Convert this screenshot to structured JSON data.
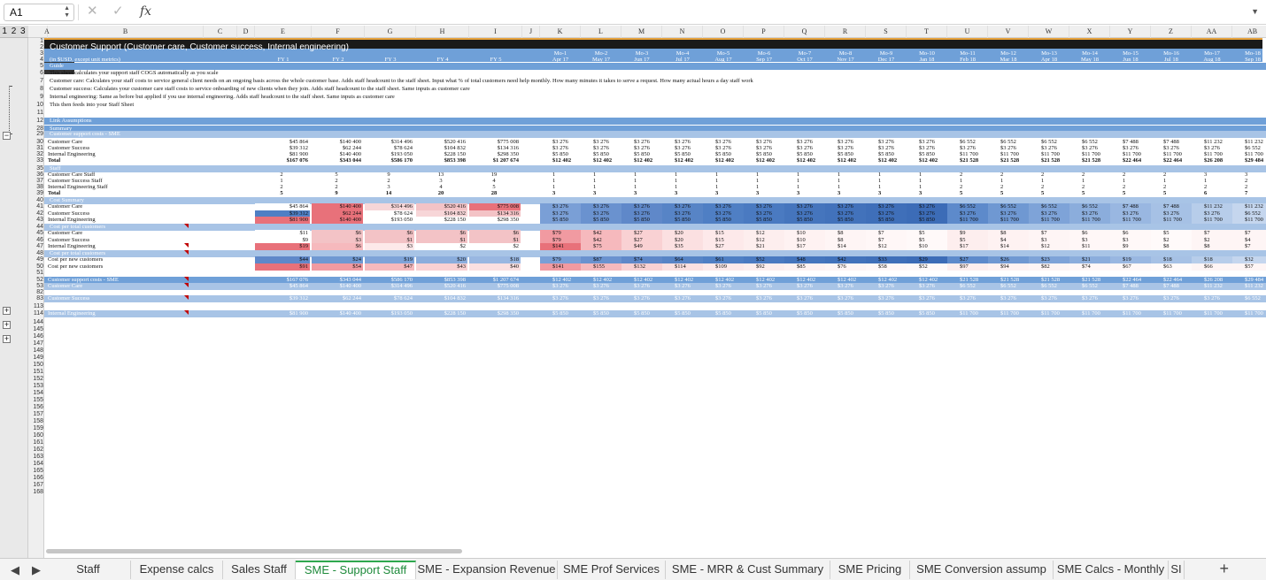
{
  "formula_bar": {
    "cell_ref": "A1",
    "cancel_icon": "✕",
    "confirm_icon": "✓",
    "fx": "fx"
  },
  "outline_levels": "1 2 3",
  "columns": [
    "A",
    "B",
    "C",
    "D",
    "E",
    "F",
    "G",
    "H",
    "I",
    "J",
    "K",
    "L",
    "M",
    "N",
    "O",
    "P",
    "Q",
    "R",
    "S",
    "T",
    "U",
    "V",
    "W",
    "X",
    "Y",
    "Z",
    "AA",
    "AB"
  ],
  "title": "Customer Support (Customer care, Customer success, Internal engineering)",
  "units_label": "(in $USD, except unit metrics)",
  "fy_headers": [
    "FY 1",
    "FY 2",
    "FY 3",
    "FY 4",
    "FY 5"
  ],
  "month_labels": [
    "Mo-1",
    "Mo-2",
    "Mo-3",
    "Mo-4",
    "Mo-5",
    "Mo-6",
    "Mo-7",
    "Mo-8",
    "Mo-9",
    "Mo-10",
    "Mo-11",
    "Mo-12",
    "Mo-13",
    "Mo-14",
    "Mo-15",
    "Mo-16",
    "Mo-17",
    "Mo-18"
  ],
  "month_dates": [
    "Apr 17",
    "May 17",
    "Jun 17",
    "Jul 17",
    "Aug 17",
    "Sep 17",
    "Oct 17",
    "Nov 17",
    "Dec 17",
    "Jan 18",
    "Feb 18",
    "Mar 18",
    "Apr 18",
    "May 18",
    "Jun 18",
    "Jul 18",
    "Aug 18",
    "Sep 18"
  ],
  "guide_label": "Guide",
  "notes": [
    "This sheet calculates your support staff COGS automatically as you scale",
    "Customer care: Calculates your staff costs to service general client needs on an ongoing basis across the whole customer base. Adds staff headcount to the staff sheet. Input what % of total customers need help monthly. How many minutes it takes to serve a request. How many actual hours a day staff work",
    "Customer success: Calculates your customer care staff costs to service onboarding of new clients when they join. Adds staff headcount to the staff sheet. Same inputs as customer care",
    "Internal engineering: Same as before but applied if you use internal engineering. Adds staff headcount to the staff sheet. Same inputs as customer care",
    "This then feeds into your Staff Sheet"
  ],
  "sections": {
    "link": "Link Assumptions",
    "summary": "Summary",
    "costs_sme": "Customer support costs - SME",
    "staff": "Staff",
    "cost_summary": "Cost Summary",
    "cpt1": "Cost per total customers",
    "cpt2": "Cost per total customers",
    "sme2": "Customer support costs - SME",
    "cc": "Customer Care",
    "cs": "Customer Success",
    "ie": "Internal Engineering"
  },
  "blocks": {
    "costs": [
      {
        "label": "Customer Care",
        "fy": [
          "$45 864",
          "$140 400",
          "$314 496",
          "$520 416",
          "$775 008"
        ],
        "mo": [
          "$3 276",
          "$3 276",
          "$3 276",
          "$3 276",
          "$3 276",
          "$3 276",
          "$3 276",
          "$3 276",
          "$3 276",
          "$3 276",
          "$6 552",
          "$6 552",
          "$6 552",
          "$6 552",
          "$7 488",
          "$7 488",
          "$11 232",
          "$11 232"
        ]
      },
      {
        "label": "Customer Success",
        "fy": [
          "$39 312",
          "$62 244",
          "$78 624",
          "$104 832",
          "$134 316"
        ],
        "mo": [
          "$3 276",
          "$3 276",
          "$3 276",
          "$3 276",
          "$3 276",
          "$3 276",
          "$3 276",
          "$3 276",
          "$3 276",
          "$3 276",
          "$3 276",
          "$3 276",
          "$3 276",
          "$3 276",
          "$3 276",
          "$3 276",
          "$3 276",
          "$6 552"
        ]
      },
      {
        "label": "Internal Engineering",
        "fy": [
          "$81 900",
          "$140 400",
          "$193 050",
          "$228 150",
          "$298 350"
        ],
        "mo": [
          "$5 850",
          "$5 850",
          "$5 850",
          "$5 850",
          "$5 850",
          "$5 850",
          "$5 850",
          "$5 850",
          "$5 850",
          "$5 850",
          "$11 700",
          "$11 700",
          "$11 700",
          "$11 700",
          "$11 700",
          "$11 700",
          "$11 700",
          "$11 700"
        ]
      },
      {
        "label": "Total",
        "fy": [
          "$167 076",
          "$343 044",
          "$586 170",
          "$853 398",
          "$1 207 674"
        ],
        "mo": [
          "$12 402",
          "$12 402",
          "$12 402",
          "$12 402",
          "$12 402",
          "$12 402",
          "$12 402",
          "$12 402",
          "$12 402",
          "$12 402",
          "$21 528",
          "$21 528",
          "$21 528",
          "$21 528",
          "$22 464",
          "$22 464",
          "$26 208",
          "$29 484"
        ]
      }
    ],
    "staff": [
      {
        "label": "Customer Care Staff",
        "fy": [
          "2",
          "5",
          "9",
          "13",
          "19"
        ],
        "mo": [
          "1",
          "1",
          "1",
          "1",
          "1",
          "1",
          "1",
          "1",
          "1",
          "1",
          "2",
          "2",
          "2",
          "2",
          "2",
          "2",
          "3",
          "3"
        ]
      },
      {
        "label": "Customer Success Staff",
        "fy": [
          "1",
          "2",
          "2",
          "3",
          "4"
        ],
        "mo": [
          "1",
          "1",
          "1",
          "1",
          "1",
          "1",
          "1",
          "1",
          "1",
          "1",
          "1",
          "1",
          "1",
          "1",
          "1",
          "1",
          "1",
          "2"
        ]
      },
      {
        "label": "Internal Engineering Staff",
        "fy": [
          "2",
          "2",
          "3",
          "4",
          "5"
        ],
        "mo": [
          "1",
          "1",
          "1",
          "1",
          "1",
          "1",
          "1",
          "1",
          "1",
          "1",
          "2",
          "2",
          "2",
          "2",
          "2",
          "2",
          "2",
          "2"
        ]
      },
      {
        "label": "Total",
        "fy": [
          "5",
          "9",
          "14",
          "20",
          "28"
        ],
        "mo": [
          "3",
          "3",
          "3",
          "3",
          "3",
          "3",
          "3",
          "3",
          "3",
          "3",
          "5",
          "5",
          "5",
          "5",
          "5",
          "5",
          "6",
          "7"
        ]
      }
    ],
    "cost_summary": [
      {
        "label": "Customer Care",
        "fy": [
          "$45 864",
          "$140 400",
          "$314 496",
          "$520 416",
          "$775 008"
        ],
        "mo": [
          "$3 276",
          "$3 276",
          "$3 276",
          "$3 276",
          "$3 276",
          "$3 276",
          "$3 276",
          "$3 276",
          "$3 276",
          "$3 276",
          "$6 552",
          "$6 552",
          "$6 552",
          "$6 552",
          "$7 488",
          "$7 488",
          "$11 232",
          "$11 232"
        ]
      },
      {
        "label": "Customer Success",
        "fy": [
          "$39 312",
          "$62 244",
          "$78 624",
          "$104 832",
          "$134 316"
        ],
        "mo": [
          "$3 276",
          "$3 276",
          "$3 276",
          "$3 276",
          "$3 276",
          "$3 276",
          "$3 276",
          "$3 276",
          "$3 276",
          "$3 276",
          "$3 276",
          "$3 276",
          "$3 276",
          "$3 276",
          "$3 276",
          "$3 276",
          "$3 276",
          "$6 552"
        ]
      },
      {
        "label": "Internal Engineering",
        "fy": [
          "$81 900",
          "$140 400",
          "$193 050",
          "$228 150",
          "$298 350"
        ],
        "mo": [
          "$5 850",
          "$5 850",
          "$5 850",
          "$5 850",
          "$5 850",
          "$5 850",
          "$5 850",
          "$5 850",
          "$5 850",
          "$5 850",
          "$11 700",
          "$11 700",
          "$11 700",
          "$11 700",
          "$11 700",
          "$11 700",
          "$11 700",
          "$11 700"
        ]
      }
    ],
    "cpt": [
      {
        "label": "Customer Care",
        "fy": [
          "$11",
          "$6",
          "$6",
          "$6",
          "$6"
        ],
        "mo": [
          "$79",
          "$42",
          "$27",
          "$20",
          "$15",
          "$12",
          "$10",
          "$8",
          "$7",
          "$5",
          "$9",
          "$8",
          "$7",
          "$6",
          "$6",
          "$5",
          "$7",
          "$7"
        ]
      },
      {
        "label": "Customer Success",
        "fy": [
          "$9",
          "$3",
          "$1",
          "$1",
          "$1"
        ],
        "mo": [
          "$79",
          "$42",
          "$27",
          "$20",
          "$15",
          "$12",
          "$10",
          "$8",
          "$7",
          "$5",
          "$5",
          "$4",
          "$3",
          "$3",
          "$3",
          "$2",
          "$2",
          "$4"
        ]
      },
      {
        "label": "Internal Engineering",
        "fy": [
          "$19",
          "$6",
          "$3",
          "$2",
          "$2"
        ],
        "mo": [
          "$141",
          "$75",
          "$49",
          "$35",
          "$27",
          "$21",
          "$17",
          "$14",
          "$12",
          "$10",
          "$17",
          "$14",
          "$12",
          "$11",
          "$9",
          "$8",
          "$8",
          "$7"
        ]
      }
    ],
    "cpn": [
      {
        "label": "Cost per new customers",
        "fy": [
          "$44",
          "$24",
          "$19",
          "$20",
          "$18"
        ],
        "mo": [
          "$79",
          "$87",
          "$74",
          "$64",
          "$61",
          "$52",
          "$48",
          "$42",
          "$33",
          "$29",
          "$27",
          "$26",
          "$23",
          "$21",
          "$19",
          "$18",
          "$18",
          "$32"
        ]
      },
      {
        "label": "Cost per new customers",
        "fy": [
          "$91",
          "$54",
          "$47",
          "$43",
          "$40"
        ],
        "mo": [
          "$141",
          "$155",
          "$132",
          "$114",
          "$109",
          "$92",
          "$85",
          "$76",
          "$58",
          "$52",
          "$97",
          "$94",
          "$82",
          "$74",
          "$67",
          "$63",
          "$66",
          "$57"
        ]
      }
    ],
    "sme_total": {
      "fy": [
        "$167 076",
        "$343 044",
        "$586 170",
        "$853 398",
        "$1 207 674"
      ],
      "mo": [
        "$12 402",
        "$12 402",
        "$12 402",
        "$12 402",
        "$12 402",
        "$12 402",
        "$12 402",
        "$12 402",
        "$12 402",
        "$12 402",
        "$21 528",
        "$21 528",
        "$21 528",
        "$21 528",
        "$22 464",
        "$22 464",
        "$26 208",
        "$29 484"
      ]
    },
    "sme_cc": {
      "fy": [
        "$45 864",
        "$140 400",
        "$314 496",
        "$520 416",
        "$775 008"
      ],
      "mo": [
        "$3 276",
        "$3 276",
        "$3 276",
        "$3 276",
        "$3 276",
        "$3 276",
        "$3 276",
        "$3 276",
        "$3 276",
        "$3 276",
        "$6 552",
        "$6 552",
        "$6 552",
        "$6 552",
        "$7 488",
        "$7 488",
        "$11 232",
        "$11 232"
      ]
    },
    "cs_row": {
      "fy": [
        "$39 312",
        "$62 244",
        "$78 624",
        "$104 832",
        "$134 316"
      ],
      "mo": [
        "$3 276",
        "$3 276",
        "$3 276",
        "$3 276",
        "$3 276",
        "$3 276",
        "$3 276",
        "$3 276",
        "$3 276",
        "$3 276",
        "$3 276",
        "$3 276",
        "$3 276",
        "$3 276",
        "$3 276",
        "$3 276",
        "$3 276",
        "$6 552"
      ]
    },
    "ie_row": {
      "fy": [
        "$81 900",
        "$140 400",
        "$193 050",
        "$228 150",
        "$298 350"
      ],
      "mo": [
        "$5 850",
        "$5 850",
        "$5 850",
        "$5 850",
        "$5 850",
        "$5 850",
        "$5 850",
        "$5 850",
        "$5 850",
        "$5 850",
        "$11 700",
        "$11 700",
        "$11 700",
        "$11 700",
        "$11 700",
        "$11 700",
        "$11 700",
        "$11 700"
      ]
    }
  },
  "row_numbers": [
    "1",
    "2",
    "3",
    "4",
    "5",
    "6",
    "7",
    "8",
    "9",
    "10",
    "11",
    "12",
    "28",
    "29",
    "30",
    "31",
    "32",
    "33",
    "35",
    "36",
    "37",
    "38",
    "39",
    "40",
    "41",
    "42",
    "43",
    "44",
    "45",
    "46",
    "47",
    "48",
    "49",
    "50",
    "51",
    "52",
    "53",
    "82",
    "83",
    "113",
    "114",
    "144",
    "145",
    "146",
    "147",
    "148",
    "149",
    "150",
    "151",
    "152",
    "153",
    "154",
    "155",
    "156",
    "157",
    "158",
    "159",
    "160",
    "161",
    "162",
    "163",
    "164",
    "165",
    "166",
    "167",
    "168"
  ],
  "tabs": [
    "Staff",
    "Expense calcs",
    "Sales Staff",
    "SME - Support Staff",
    "SME - Expansion Revenue",
    "SME Prof Services",
    "SME - MRR & Cust Summary",
    "SME Pricing",
    "SME Conversion assump",
    "SME Calcs - Monthly",
    "SI"
  ],
  "active_tab": "SME - Support Staff",
  "colors": {
    "band": "#6fa0d8",
    "band_light": "#a8c4e6",
    "title_bg": "#1a1a1a",
    "accent_orange": "#e6a23c",
    "tab_active": "#1d8a3a"
  }
}
